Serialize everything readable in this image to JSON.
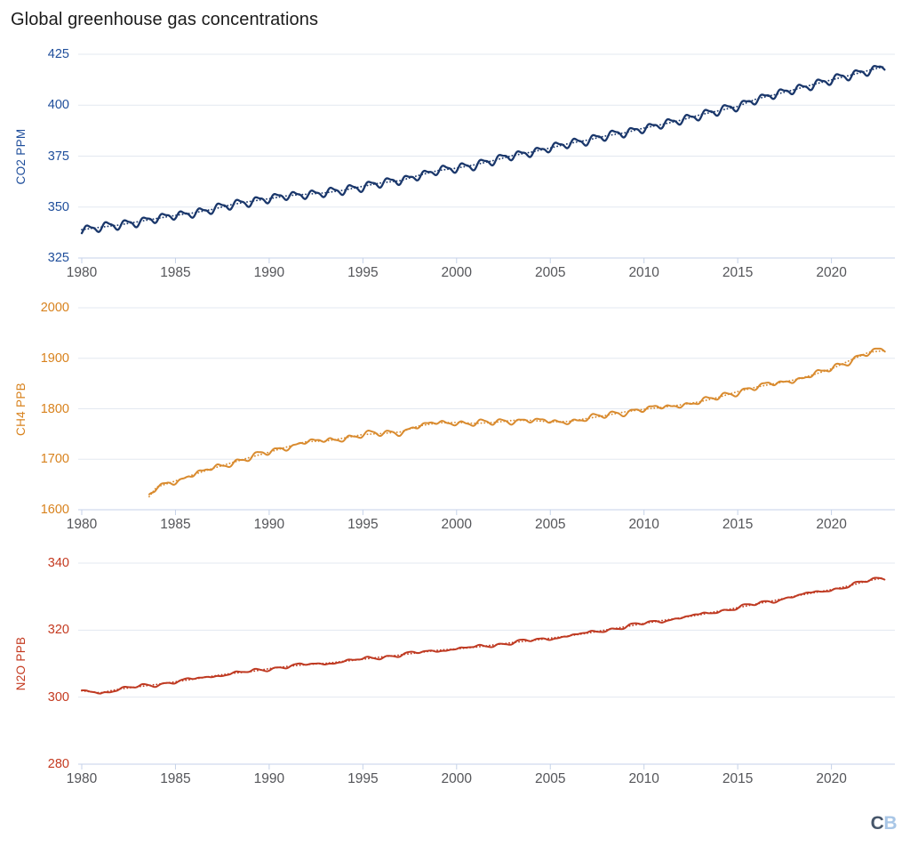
{
  "title": "Global greenhouse gas concentrations",
  "watermark": {
    "c": "C",
    "b": "B"
  },
  "colors": {
    "title": "#1b1b1b",
    "year_label": "#55565a",
    "grid": "#e3e8f0",
    "axis": "#c5d2e8",
    "logo_c": "#46566a",
    "logo_b": "#a8c6e6",
    "background": "#ffffff"
  },
  "chart_data": [
    {
      "type": "line",
      "id": "co2",
      "ylabel": "CO2 PPM",
      "color": "#1a376b",
      "label_color": "#1f4e9b",
      "x_ticks": [
        1980,
        1985,
        1990,
        1995,
        2000,
        2005,
        2010,
        2015,
        2020
      ],
      "y_ticks": [
        325,
        350,
        375,
        400,
        425
      ],
      "ylim": [
        325,
        425
      ],
      "xlim": [
        1979.8,
        2023.7
      ],
      "seasonal_amplitude": 1.75,
      "noise_amplitudes": [
        0.22,
        0.18
      ],
      "x": [
        1980,
        1981,
        1982,
        1983,
        1984,
        1985,
        1986,
        1987,
        1988,
        1989,
        1990,
        1991,
        1992,
        1993,
        1994,
        1995,
        1996,
        1997,
        1998,
        1999,
        2000,
        2001,
        2002,
        2003,
        2004,
        2005,
        2006,
        2007,
        2008,
        2009,
        2010,
        2011,
        2012,
        2013,
        2014,
        2015,
        2016,
        2017,
        2018,
        2019,
        2020,
        2021,
        2022,
        2023
      ],
      "values": [
        338.9,
        340.1,
        341.2,
        342.8,
        344.4,
        345.9,
        347.2,
        348.9,
        351.2,
        352.8,
        354.1,
        355.6,
        356.3,
        357.0,
        358.3,
        360.2,
        361.9,
        363.0,
        365.6,
        367.9,
        369.1,
        370.8,
        372.9,
        375.3,
        377.0,
        379.0,
        381.2,
        382.9,
        385.0,
        386.5,
        388.8,
        390.6,
        392.7,
        395.3,
        397.3,
        399.4,
        403.1,
        405.2,
        407.6,
        410.1,
        412.4,
        414.7,
        417.1,
        419.3
      ]
    },
    {
      "type": "line",
      "id": "ch4",
      "ylabel": "CH4 PPB",
      "color": "#d98b2f",
      "label_color": "#d8821d",
      "x_ticks": [
        1980,
        1985,
        1990,
        1995,
        2000,
        2005,
        2010,
        2015,
        2020
      ],
      "y_ticks": [
        1600,
        1700,
        1800,
        1900,
        2000
      ],
      "ylim": [
        1600,
        2000
      ],
      "xlim": [
        1979.8,
        2023.7
      ],
      "seasonal_amplitude": 3.8,
      "noise_amplitudes": [
        2.2,
        1.6
      ],
      "x": [
        1983.6,
        1984,
        1985,
        1986,
        1987,
        1988,
        1989,
        1990,
        1991,
        1992,
        1993,
        1994,
        1995,
        1996,
        1997,
        1998,
        1999,
        2000,
        2001,
        2002,
        2003,
        2004,
        2005,
        2006,
        2007,
        2008,
        2009,
        2010,
        2011,
        2012,
        2013,
        2014,
        2015,
        2016,
        2017,
        2018,
        2019,
        2020,
        2021,
        2022,
        2023
      ],
      "values": [
        1626,
        1645,
        1657,
        1670,
        1682,
        1693,
        1704,
        1714,
        1725,
        1735,
        1736,
        1742,
        1749,
        1751,
        1754,
        1766,
        1772,
        1773,
        1771,
        1773,
        1777,
        1777,
        1774,
        1775,
        1781,
        1787,
        1794,
        1799,
        1803,
        1808,
        1814,
        1823,
        1834,
        1843,
        1850,
        1857,
        1867,
        1879,
        1896,
        1912,
        1916
      ]
    },
    {
      "type": "line",
      "id": "n2o",
      "ylabel": "N2O PPB",
      "color": "#bf3a22",
      "label_color": "#c43a20",
      "x_ticks": [
        1980,
        1985,
        1990,
        1995,
        2000,
        2005,
        2010,
        2015,
        2020
      ],
      "y_ticks": [
        280,
        300,
        320,
        340
      ],
      "ylim": [
        280,
        340
      ],
      "xlim": [
        1979.8,
        2023.7
      ],
      "seasonal_amplitude": 0.22,
      "noise_amplitudes": [
        0.3,
        0.22
      ],
      "x": [
        1980,
        1981,
        1982,
        1983,
        1984,
        1985,
        1986,
        1987,
        1988,
        1989,
        1990,
        1991,
        1992,
        1993,
        1994,
        1995,
        1996,
        1997,
        1998,
        1999,
        2000,
        2001,
        2002,
        2003,
        2004,
        2005,
        2006,
        2007,
        2008,
        2009,
        2010,
        2011,
        2012,
        2013,
        2014,
        2015,
        2016,
        2017,
        2018,
        2019,
        2020,
        2021,
        2022,
        2023
      ],
      "values": [
        301.9,
        301.3,
        302.4,
        303.1,
        303.8,
        304.6,
        305.4,
        306.3,
        307.1,
        307.6,
        308.5,
        309.2,
        309.7,
        310.1,
        310.7,
        311.3,
        312.0,
        312.6,
        313.3,
        314.0,
        314.4,
        314.9,
        315.6,
        316.3,
        316.9,
        317.6,
        318.3,
        319.1,
        320.1,
        321.0,
        322.0,
        322.9,
        323.7,
        324.6,
        325.7,
        326.7,
        327.8,
        328.9,
        330.1,
        331.1,
        332.1,
        333.3,
        334.8,
        335.8
      ]
    }
  ]
}
